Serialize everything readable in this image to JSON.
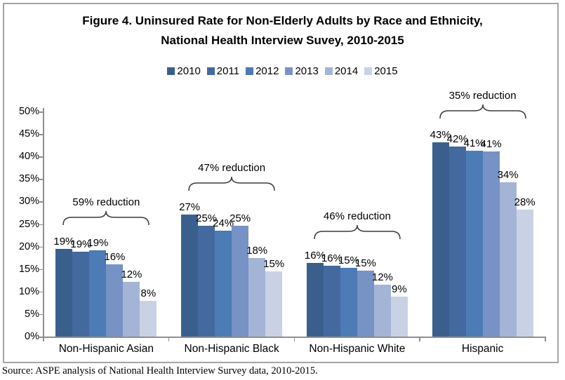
{
  "figure": {
    "title": "Figure 4. Uninsured Rate for Non-Elderly Adults by Race and Ethnicity, National Health Interview Suvey, 2010-2015",
    "source_note": "Source: ASPE analysis of National Health Interview Survey data, 2010-2015."
  },
  "chart_data": {
    "type": "bar",
    "title": "Figure 4. Uninsured Rate for Non-Elderly Adults by Race and Ethnicity, National Health Interview Suvey, 2010-2015",
    "categories": [
      "Non-Hispanic Asian",
      "Non-Hispanic Black",
      "Non-Hispanic White",
      "Hispanic"
    ],
    "series": [
      {
        "name": "2010",
        "color": "#3A5F8D",
        "values": [
          19.4,
          27.1,
          16.4,
          43.2
        ],
        "labels": [
          "19%",
          "27%",
          "16%",
          "43%"
        ]
      },
      {
        "name": "2011",
        "color": "#44699E",
        "values": [
          18.8,
          24.6,
          15.8,
          42.2
        ],
        "labels": [
          "19%",
          "25%",
          "16%",
          "42%"
        ]
      },
      {
        "name": "2012",
        "color": "#4C7BB5",
        "values": [
          19.1,
          23.5,
          15.2,
          41.3
        ],
        "labels": [
          "19%",
          "24%",
          "15%",
          "41%"
        ]
      },
      {
        "name": "2013",
        "color": "#7792C5",
        "values": [
          16.1,
          24.6,
          14.7,
          41.1
        ],
        "labels": [
          "16%",
          "25%",
          "15%",
          "41%"
        ]
      },
      {
        "name": "2014",
        "color": "#A4B4D6",
        "values": [
          12.1,
          17.5,
          11.6,
          34.2
        ],
        "labels": [
          "12%",
          "18%",
          "12%",
          "34%"
        ]
      },
      {
        "name": "2015",
        "color": "#C9D2E5",
        "values": [
          8.0,
          14.5,
          8.9,
          28.2
        ],
        "labels": [
          "8%",
          "15%",
          "9%",
          "28%"
        ]
      }
    ],
    "annotations": [
      {
        "category": "Non-Hispanic Asian",
        "label": "59% reduction"
      },
      {
        "category": "Non-Hispanic Black",
        "label": "47% reduction"
      },
      {
        "category": "Non-Hispanic White",
        "label": "46% reduction"
      },
      {
        "category": "Hispanic",
        "label": "35% reduction"
      }
    ],
    "xlabel": "",
    "ylabel": "",
    "ylim": [
      0,
      50
    ],
    "ytick_step": 5,
    "ytick_labels": [
      "0%",
      "5%",
      "10%",
      "15%",
      "20%",
      "25%",
      "30%",
      "35%",
      "40%",
      "45%",
      "50%"
    ],
    "legend_position": "top",
    "grid": false,
    "axis_color": "#8F8F8F",
    "annotation_color": "#000000"
  }
}
